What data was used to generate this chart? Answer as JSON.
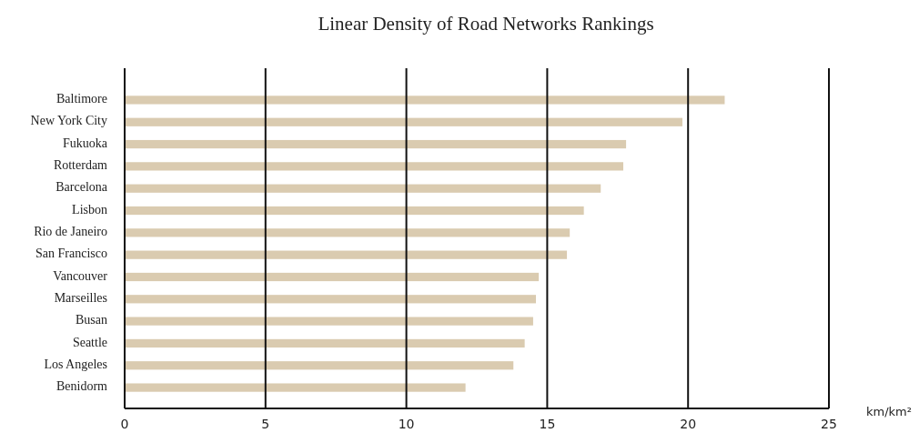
{
  "chart_data": {
    "type": "bar",
    "orientation": "horizontal",
    "title": "Linear Density of Road Networks Rankings",
    "xlabel": "km/km²",
    "categories": [
      "Baltimore",
      "New York City",
      "Fukuoka",
      "Rotterdam",
      "Barcelona",
      "Lisbon",
      "Rio de Janeiro",
      "San Francisco",
      "Vancouver",
      "Marseilles",
      "Busan",
      "Seattle",
      "Los Angeles",
      "Benidorm"
    ],
    "values": [
      21.3,
      19.8,
      17.8,
      17.7,
      16.9,
      16.3,
      15.8,
      15.7,
      14.7,
      14.6,
      14.5,
      14.2,
      13.8,
      12.1
    ],
    "color": "#dacbb0",
    "xlim": [
      0,
      25
    ],
    "xticks": [
      0,
      5,
      10,
      15,
      20,
      25
    ],
    "grid": "x"
  }
}
